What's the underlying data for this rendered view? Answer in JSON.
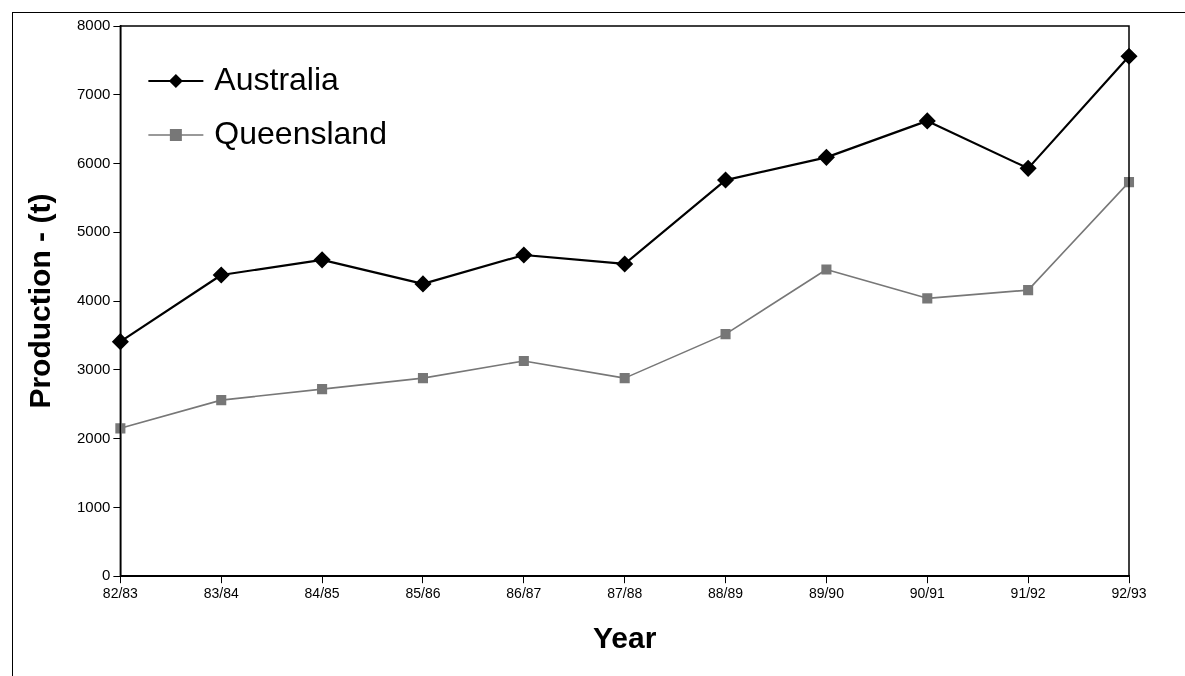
{
  "chart_data": {
    "type": "line",
    "xlabel": "Year",
    "ylabel": "Production - (t)",
    "categories": [
      "82/83",
      "83/84",
      "84/85",
      "85/86",
      "86/87",
      "87/88",
      "88/89",
      "89/90",
      "90/91",
      "91/92",
      "92/93"
    ],
    "series": [
      {
        "name": "Australia",
        "color": "#000000",
        "marker": "diamond",
        "values": [
          3410,
          4380,
          4600,
          4250,
          4670,
          4540,
          5760,
          6090,
          6620,
          5930,
          7560
        ]
      },
      {
        "name": "Queensland",
        "color": "#777777",
        "marker": "square",
        "values": [
          2150,
          2560,
          2720,
          2880,
          3130,
          2880,
          3520,
          4460,
          4040,
          4160,
          5730
        ]
      }
    ],
    "ylim": [
      0,
      8000
    ],
    "yticks": [
      0,
      1000,
      2000,
      3000,
      4000,
      5000,
      6000,
      7000,
      8000
    ],
    "grid": false,
    "legend": "top left",
    "line_style": "solid"
  }
}
